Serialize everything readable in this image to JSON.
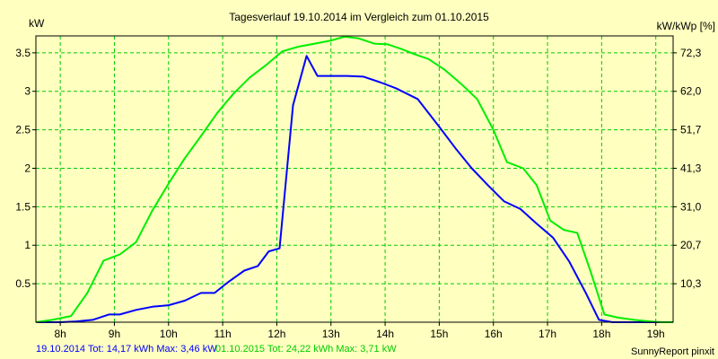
{
  "chart_data": {
    "type": "line",
    "title": "Tagesverlauf 19.10.2014 im Vergleich zum 01.10.2015",
    "ylabel_left": "kW",
    "ylabel_right": "kW/kWp [%]",
    "x_tick_labels": [
      "8h",
      "9h",
      "10h",
      "11h",
      "12h",
      "13h",
      "14h",
      "15h",
      "16h",
      "17h",
      "18h",
      "19h"
    ],
    "x_tick_values": [
      8,
      9,
      10,
      11,
      12,
      13,
      14,
      15,
      16,
      17,
      18,
      19
    ],
    "xlim": [
      7.55,
      19.32
    ],
    "ylim": [
      0,
      3.72
    ],
    "y_left_ticks": [
      {
        "value": 0.5,
        "label": "0.5"
      },
      {
        "value": 1,
        "label": "1"
      },
      {
        "value": 1.5,
        "label": "1.5"
      },
      {
        "value": 2,
        "label": "2"
      },
      {
        "value": 2.5,
        "label": "2.5"
      },
      {
        "value": 3,
        "label": "3"
      },
      {
        "value": 3.5,
        "label": "3.5"
      }
    ],
    "y_right_ticks": [
      {
        "value": 0.5,
        "label": "10,3"
      },
      {
        "value": 1,
        "label": "20,7"
      },
      {
        "value": 1.5,
        "label": "31,0"
      },
      {
        "value": 2,
        "label": "41,3"
      },
      {
        "value": 2.5,
        "label": "51,7"
      },
      {
        "value": 3,
        "label": "62,0"
      },
      {
        "value": 3.5,
        "label": "72,3"
      }
    ],
    "grid": true,
    "series": [
      {
        "color": "#0000ff",
        "x": [
          7.55,
          8.0,
          8.3,
          8.6,
          8.9,
          9.1,
          9.4,
          9.7,
          10.0,
          10.3,
          10.6,
          10.85,
          11.1,
          11.4,
          11.65,
          11.85,
          12.05,
          12.3,
          12.55,
          12.75,
          13.0,
          13.3,
          13.6,
          13.9,
          14.2,
          14.6,
          15.0,
          15.3,
          15.6,
          15.9,
          16.2,
          16.5,
          16.8,
          17.1,
          17.4,
          17.7,
          17.95,
          18.2,
          18.5,
          18.8,
          19.0,
          19.32
        ],
        "values": [
          0,
          0,
          0.01,
          0.03,
          0.1,
          0.1,
          0.16,
          0.2,
          0.22,
          0.28,
          0.38,
          0.38,
          0.52,
          0.67,
          0.73,
          0.92,
          0.96,
          2.82,
          3.46,
          3.2,
          3.2,
          3.2,
          3.19,
          3.12,
          3.04,
          2.9,
          2.54,
          2.26,
          2.0,
          1.78,
          1.57,
          1.47,
          1.28,
          1.1,
          0.79,
          0.39,
          0.03,
          0.0,
          0.0,
          0.0,
          0.0,
          0.0
        ]
      },
      {
        "color": "#00ee00",
        "x": [
          7.55,
          7.85,
          8.2,
          8.5,
          8.8,
          9.1,
          9.4,
          9.7,
          10.0,
          10.3,
          10.6,
          10.9,
          11.2,
          11.5,
          11.8,
          12.1,
          12.4,
          12.7,
          13.0,
          13.25,
          13.5,
          13.8,
          14.05,
          14.3,
          14.55,
          14.8,
          15.1,
          15.4,
          15.7,
          16.0,
          16.25,
          16.55,
          16.8,
          17.05,
          17.3,
          17.55,
          17.8,
          18.05,
          18.3,
          18.6,
          18.9,
          19.1,
          19.32
        ],
        "values": [
          0,
          0.03,
          0.08,
          0.38,
          0.8,
          0.88,
          1.04,
          1.45,
          1.8,
          2.13,
          2.42,
          2.72,
          2.97,
          3.18,
          3.34,
          3.52,
          3.58,
          3.62,
          3.66,
          3.71,
          3.69,
          3.62,
          3.61,
          3.55,
          3.48,
          3.42,
          3.28,
          3.1,
          2.9,
          2.5,
          2.08,
          2.0,
          1.78,
          1.32,
          1.2,
          1.16,
          0.65,
          0.1,
          0.06,
          0.03,
          0.01,
          0.0,
          0.0
        ]
      }
    ]
  },
  "footer": {
    "series1_summary": "19.10.2014 Tot: 14,17 kWh Max: 3,46 kW",
    "series2_summary": "01.10.2015 Tot: 24,22 kWh Max: 3,71 kW",
    "credit": "SunnyReport pinxit"
  },
  "colors": {
    "background": "#ffffc0",
    "plot_border": "#000000",
    "grid": "#00cc00",
    "series1": "#0000ff",
    "series2": "#00ee00",
    "text": "#000000"
  }
}
